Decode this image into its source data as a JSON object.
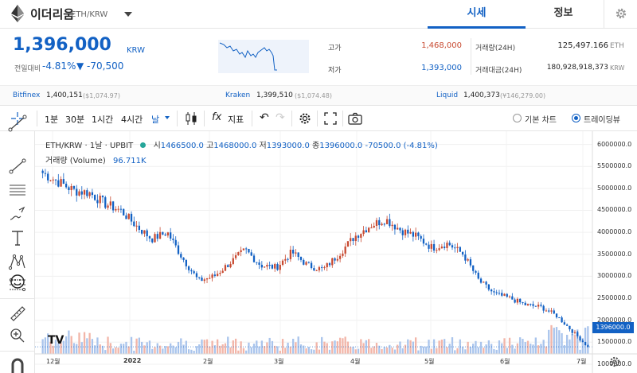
{
  "header": {
    "coin_name": "이더리움",
    "coin_pair": "ETH/KRW",
    "tabs": [
      {
        "label": "시세"
      },
      {
        "label": "정보"
      }
    ]
  },
  "ticker": {
    "price": "1,396,000",
    "unit": "KRW",
    "change_label": "전일대비",
    "change_pct": "-4.81%",
    "change_abs": "▼ -70,500",
    "high_label": "고가",
    "high": "1,468,000",
    "low_label": "저가",
    "low": "1,393,000",
    "volume_label": "거래량(24H)",
    "volume": "125,497.166",
    "volume_unit": "ETH",
    "amount_label": "거래대금(24H)",
    "amount": "180,928,918,373",
    "amount_unit": "KRW"
  },
  "exchanges": [
    {
      "name": "Bitfinex",
      "price": "1,400,151",
      "usd": "($1,074.97)"
    },
    {
      "name": "Kraken",
      "price": "1,399,510",
      "usd": "($1,074.48)"
    },
    {
      "name": "Liquid",
      "price": "1,400,373",
      "usd": "(¥146,279.00)"
    }
  ],
  "toolbar": {
    "intervals": [
      "1분",
      "30분",
      "1시간",
      "4시간",
      "날"
    ],
    "selected_interval": "날",
    "indicators_label": "지표",
    "chart_modes": [
      "기본 차트",
      "트레이딩뷰"
    ],
    "selected_mode": "트레이딩뷰"
  },
  "legend": {
    "symbol": "ETH/KRW · 1날 · UPBIT",
    "open_label": "시",
    "open": "1466500.0",
    "high_label": "고",
    "high": "1468000.0",
    "low_label": "저",
    "low": "1393000.0",
    "close_label": "종",
    "close": "1396000.0",
    "change": "-70500.0 (-4.81%)",
    "volume_label": "거래량 (Volume)",
    "volume_value": "96.711K"
  },
  "last_price_tag": "1396000.0",
  "colors": {
    "up": "#c84a31",
    "down": "#1261c4",
    "accent": "#1261c4"
  },
  "chart_data": {
    "type": "candlestick",
    "symbol": "ETH/KRW",
    "y_ticks": [
      "6000000.0",
      "5500000.0",
      "5000000.0",
      "4500000.0",
      "4000000.0",
      "3500000.0",
      "3000000.0",
      "2500000.0",
      "2000000.0",
      "1500000.0",
      "1000000.0"
    ],
    "ylim": [
      800000,
      6300000
    ],
    "x_ticks": [
      "12월",
      "2022",
      "2월",
      "3월",
      "4월",
      "5월",
      "6월",
      "7월"
    ],
    "close_path": [
      5350000,
      5150000,
      4950000,
      4900000,
      4650000,
      4500000,
      4150000,
      3850000,
      4000000,
      3400000,
      2900000,
      3000000,
      3300000,
      3600000,
      3250000,
      3200000,
      3550000,
      3250000,
      3150000,
      3500000,
      3900000,
      4150000,
      4300000,
      4050000,
      3900000,
      3650000,
      3750000,
      3500000,
      2900000,
      2600000,
      2500000,
      2350000,
      2300000,
      2100000,
      1750000,
      1396000
    ]
  }
}
